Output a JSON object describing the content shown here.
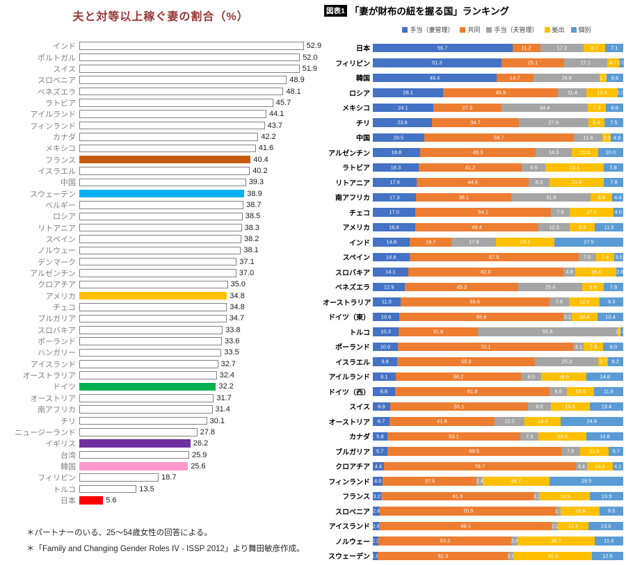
{
  "chart_data": [
    {
      "id": "equal-earning-wives",
      "type": "bar",
      "orientation": "horizontal",
      "title": "夫と対等以上稼ぐ妻の割合（%）",
      "title_color": "#953735",
      "xlim": [
        0,
        55
      ],
      "grid": false,
      "default_bar_color": "#FFFFFF",
      "default_bar_border_color": "#808080",
      "category_label_color": "#7F7F7F",
      "value_label_color": "#1A1A1A",
      "categories": [
        "インド",
        "ポルトガル",
        "スイス",
        "スロベニア",
        "ベネズエラ",
        "ラトビア",
        "アイルランド",
        "フィンランド",
        "カナダ",
        "メキシコ",
        "フランス",
        "イスラエル",
        "中国",
        "スウェーデン",
        "ベルギー",
        "ロシア",
        "リトアニア",
        "スペイン",
        "ノルウェー",
        "デンマーク",
        "アルゼンチン",
        "クロアチア",
        "アメリカ",
        "チェコ",
        "ブルガリア",
        "スロバキア",
        "ポーランド",
        "ハンガリー",
        "アイスランド",
        "オーストラリア",
        "ドイツ",
        "オーストリア",
        "南アフリカ",
        "チリ",
        "ニュージーランド",
        "イギリス",
        "台湾",
        "韓国",
        "フィリピン",
        "トルコ",
        "日本"
      ],
      "values": [
        52.9,
        52.0,
        51.9,
        48.9,
        48.1,
        45.7,
        44.1,
        43.7,
        42.2,
        41.6,
        40.4,
        40.2,
        39.3,
        38.9,
        38.7,
        38.5,
        38.3,
        38.2,
        38.1,
        37.1,
        37.0,
        35.0,
        34.8,
        34.8,
        34.7,
        33.8,
        33.6,
        33.5,
        32.7,
        32.4,
        32.2,
        31.7,
        31.4,
        30.1,
        27.8,
        26.2,
        25.9,
        25.6,
        18.7,
        13.5,
        5.6
      ],
      "highlight_colors": {
        "フランス": "#C55A11",
        "スウェーデン": "#00B0F0",
        "アメリカ": "#FFC000",
        "ドイツ": "#00B050",
        "イギリス": "#7030A0",
        "韓国": "#FF99CC",
        "日本": "#FF0000"
      },
      "footnotes": [
        "＊パートナーのいる、25～54歳女性の回答による。",
        "＊「Family and Changing Gender Roles IV - ISSP 2012」より舞田敏彦作成。"
      ]
    },
    {
      "id": "purse-strings-ranking",
      "type": "stacked-bar",
      "orientation": "horizontal",
      "badge": "図表1",
      "title": "「妻が財布の紐を握る国」ランキング",
      "xlim": [
        0,
        100
      ],
      "legend_position": "top",
      "segment_label_color": "#FFFFFF",
      "series": [
        {
          "name": "手当（妻管理）",
          "color": "#4472C4"
        },
        {
          "name": "共同",
          "color": "#ED7D31"
        },
        {
          "name": "手当（夫管理）",
          "color": "#A5A5A5"
        },
        {
          "name": "拠出",
          "color": "#FFC000"
        },
        {
          "name": "個別",
          "color": "#5B9BD5"
        }
      ],
      "categories": [
        "日本",
        "フィリピン",
        "韓国",
        "ロシア",
        "メキシコ",
        "チリ",
        "中国",
        "アルゼンチン",
        "ラトビア",
        "リトアニア",
        "南アフリカ",
        "チェコ",
        "アメリカ",
        "インド",
        "スペイン",
        "スロバキア",
        "ベネズエラ",
        "オーストラリア",
        "ドイツ（東）",
        "トルコ",
        "ポーランド",
        "イスラエル",
        "アイルランド",
        "ドイツ（西）",
        "スイス",
        "オーストリア",
        "カナダ",
        "ブルガリア",
        "クロアチア",
        "フィンランド",
        "フランス",
        "スロベニア",
        "アイスランド",
        "ノルウェー",
        "スウェーデン"
      ],
      "rows": [
        [
          55.7,
          11.2,
          17.3,
          8.7,
          7.1
        ],
        [
          51.3,
          25.1,
          17.1,
          4.7,
          2.0
        ],
        [
          49.4,
          14.7,
          26.6,
          2.7,
          6.6
        ],
        [
          28.1,
          45.9,
          11.4,
          12.4,
          2.3
        ],
        [
          24.1,
          27.3,
          34.4,
          7.3,
          6.9
        ],
        [
          23.6,
          34.7,
          27.8,
          6.4,
          7.5
        ],
        [
          20.5,
          59.7,
          11.6,
          3.3,
          4.9
        ],
        [
          18.8,
          46.3,
          14.3,
          10.6,
          10.0
        ],
        [
          18.3,
          41.2,
          9.5,
          23.1,
          7.8
        ],
        [
          17.6,
          44.6,
          8.3,
          21.8,
          7.8
        ],
        [
          17.3,
          38.1,
          31.6,
          8.6,
          4.4
        ],
        [
          17.0,
          54.1,
          7.5,
          17.4,
          4.0
        ],
        [
          16.8,
          49.4,
          12.5,
          9.9,
          11.5
        ],
        [
          14.8,
          16.7,
          17.8,
          23.2,
          27.5
        ],
        [
          14.6,
          67.5,
          7.0,
          7.4,
          3.5
        ],
        [
          14.1,
          62.0,
          4.8,
          16.4,
          2.8
        ],
        [
          12.9,
          45.3,
          25.4,
          8.6,
          7.8
        ],
        [
          11.0,
          59.5,
          7.8,
          12.4,
          9.3
        ],
        [
          10.6,
          65.6,
          3.1,
          10.4,
          10.4
        ],
        [
          10.3,
          31.6,
          55.8,
          1.3,
          1.0
        ],
        [
          10.0,
          70.1,
          4.1,
          7.8,
          8.0
        ],
        [
          9.8,
          55.0,
          25.3,
          3.7,
          6.2
        ],
        [
          9.1,
          50.2,
          8.0,
          18.0,
          14.8
        ],
        [
          8.8,
          61.9,
          6.8,
          10.9,
          11.6
        ],
        [
          6.9,
          55.1,
          9.0,
          15.6,
          13.4
        ],
        [
          6.7,
          41.8,
          12.2,
          14.3,
          24.9
        ],
        [
          5.8,
          53.1,
          7.3,
          19.0,
          14.8
        ],
        [
          5.7,
          69.5,
          7.5,
          11.6,
          5.7
        ],
        [
          4.4,
          76.7,
          4.4,
          10.3,
          4.1
        ],
        [
          4.0,
          37.5,
          2.4,
          26.7,
          29.5
        ],
        [
          3.2,
          61.3,
          2.3,
          19.9,
          13.3
        ],
        [
          2.8,
          70.5,
          1.7,
          15.6,
          9.5
        ],
        [
          2.6,
          69.1,
          2.2,
          12.2,
          13.9
        ],
        [
          2.2,
          53.3,
          2.4,
          30.7,
          11.4
        ],
        [
          1.9,
          52.3,
          2.0,
          31.3,
          12.5
        ]
      ]
    }
  ]
}
